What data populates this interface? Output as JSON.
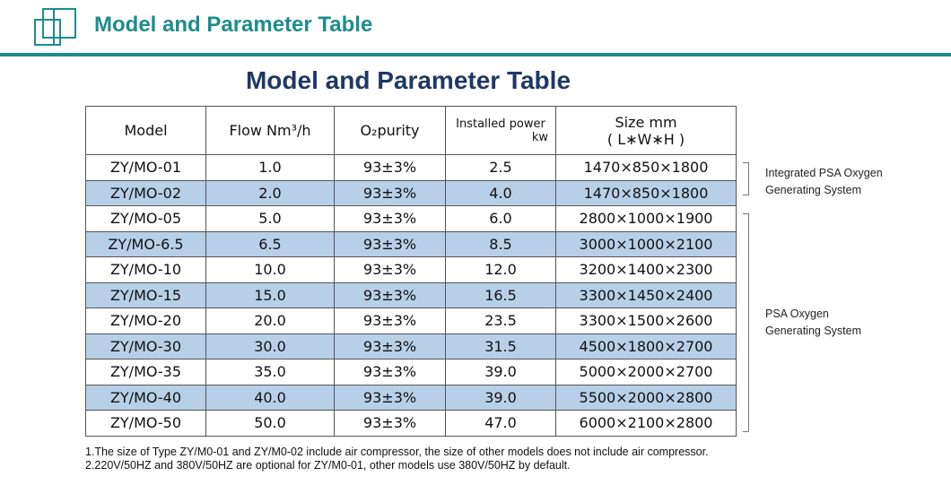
{
  "header": {
    "title": "Model and Parameter Table"
  },
  "table": {
    "title": "Model and Parameter Table",
    "headers": [
      [
        "Model"
      ],
      [
        "Flow Nm³/h"
      ],
      [
        "O₂purity"
      ],
      [
        "Installed power",
        "kw"
      ],
      [
        "Size mm",
        "( L∗W∗H )"
      ]
    ],
    "rows": [
      [
        "ZY/MO-01",
        "1.0",
        "93±3%",
        "2.5",
        "1470×850×1800"
      ],
      [
        "ZY/MO-02",
        "2.0",
        "93±3%",
        "4.0",
        "1470×850×1800"
      ],
      [
        "ZY/MO-05",
        "5.0",
        "93±3%",
        "6.0",
        "2800×1000×1900"
      ],
      [
        "ZY/MO-6.5",
        "6.5",
        "93±3%",
        "8.5",
        "3000×1000×2100"
      ],
      [
        "ZY/MO-10",
        "10.0",
        "93±3%",
        "12.0",
        "3200×1400×2300"
      ],
      [
        "ZY/MO-15",
        "15.0",
        "93±3%",
        "16.5",
        "3300×1450×2400"
      ],
      [
        "ZY/MO-20",
        "20.0",
        "93±3%",
        "23.5",
        "3300×1500×2600"
      ],
      [
        "ZY/MO-30",
        "30.0",
        "93±3%",
        "31.5",
        "4500×1800×2700"
      ],
      [
        "ZY/MO-35",
        "35.0",
        "93±3%",
        "39.0",
        "5000×2000×2700"
      ],
      [
        "ZY/MO-40",
        "40.0",
        "93±3%",
        "39.0",
        "5500×2000×2800"
      ],
      [
        "ZY/MO-50",
        "50.0",
        "93±3%",
        "47.0",
        "6000×2100×2800"
      ]
    ]
  },
  "groups": [
    {
      "label": [
        "Integrated PSA Oxygen",
        "Generating System"
      ]
    },
    {
      "label": [
        "PSA Oxygen",
        "Generating System"
      ]
    }
  ],
  "notes": [
    "1.The size of Type ZY/M0-01 and ZY/M0-02 include air compressor, the size of other models does not include air compressor.",
    "2.220V/50HZ and 380V/50HZ are optional for ZY/M0-01, other models use 380V/50HZ by default."
  ]
}
